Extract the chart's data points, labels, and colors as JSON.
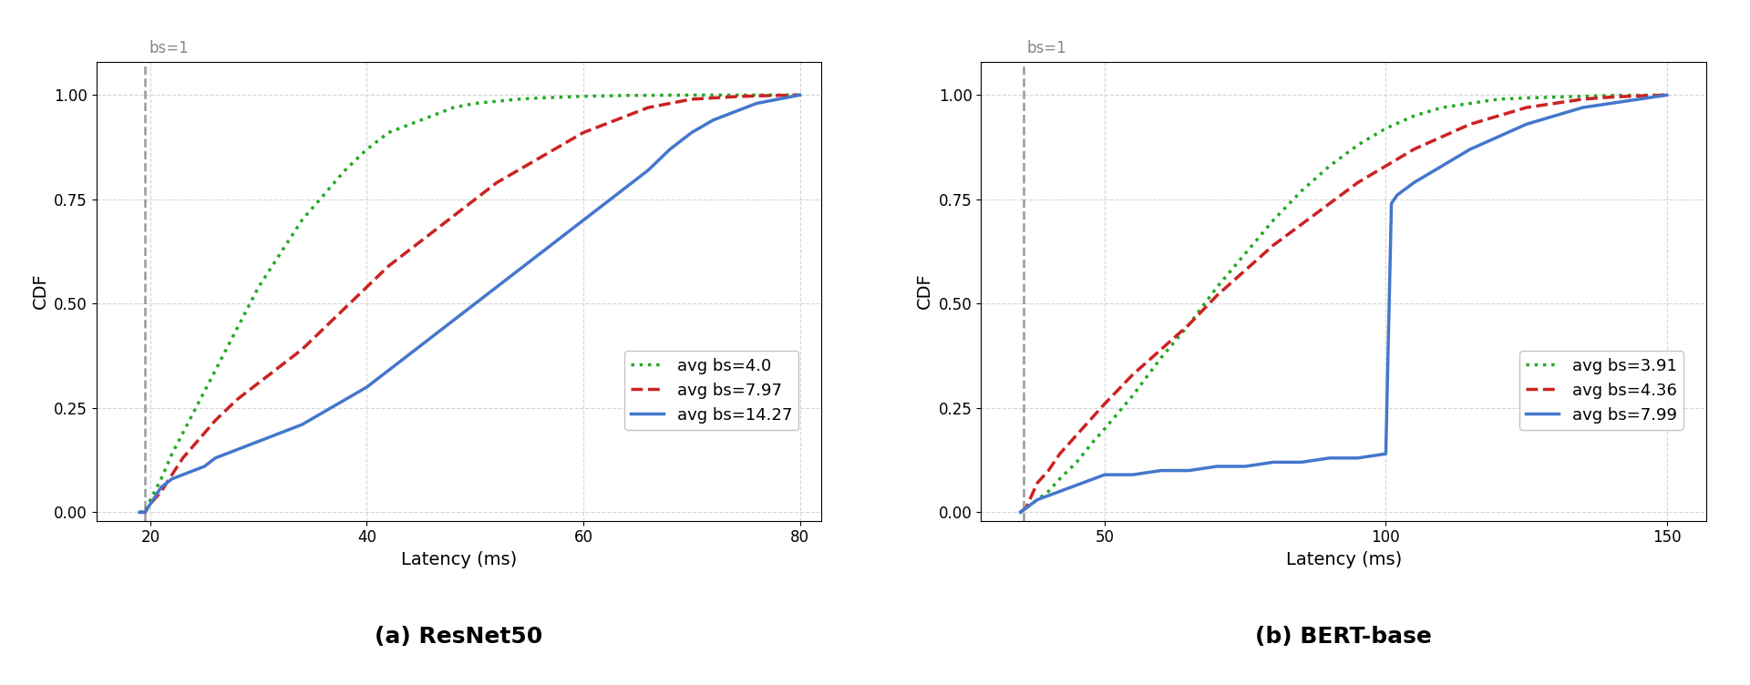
{
  "resnet": {
    "title": "(a) ResNet50",
    "xlabel": "Latency (ms)",
    "ylabel": "CDF",
    "xlim": [
      15.0,
      82.0
    ],
    "ylim": [
      -0.02,
      1.08
    ],
    "xticks": [
      20,
      40,
      60,
      80
    ],
    "yticks": [
      0.0,
      0.25,
      0.5,
      0.75,
      1.0
    ],
    "vline_x": 19.5,
    "vline_label": "bs=1",
    "series": [
      {
        "label": "avg bs=4.0",
        "color": "#22aa22",
        "linestyle": "dotted",
        "linewidth": 2.5,
        "x": [
          19.0,
          19.5,
          20.0,
          21.0,
          22.0,
          23.0,
          24.0,
          25.0,
          26.0,
          27.0,
          28.0,
          29.0,
          30.0,
          32.0,
          34.0,
          36.0,
          38.0,
          40.0,
          42.0,
          44.0,
          46.0,
          48.0,
          50.0,
          52.0,
          54.0,
          56.0,
          58.0,
          60.0,
          62.0,
          64.0,
          66.0,
          68.0,
          70.0,
          72.0,
          74.0,
          76.0,
          78.0,
          80.0
        ],
        "y": [
          0.0,
          0.0,
          0.03,
          0.08,
          0.14,
          0.19,
          0.24,
          0.29,
          0.34,
          0.39,
          0.44,
          0.49,
          0.54,
          0.62,
          0.7,
          0.76,
          0.82,
          0.87,
          0.91,
          0.93,
          0.95,
          0.97,
          0.98,
          0.985,
          0.99,
          0.993,
          0.995,
          0.997,
          0.998,
          0.999,
          0.9993,
          0.9996,
          0.9998,
          0.9999,
          0.9999,
          1.0,
          1.0,
          1.0
        ]
      },
      {
        "label": "avg bs=7.97",
        "color": "#cc2222",
        "linestyle": "dashed",
        "linewidth": 2.5,
        "x": [
          19.0,
          19.5,
          20.0,
          21.0,
          22.0,
          23.0,
          24.0,
          25.0,
          26.0,
          28.0,
          30.0,
          32.0,
          34.0,
          36.0,
          38.0,
          40.0,
          42.0,
          44.0,
          46.0,
          48.0,
          50.0,
          52.0,
          54.0,
          56.0,
          58.0,
          60.0,
          62.0,
          64.0,
          66.0,
          68.0,
          70.0,
          72.0,
          74.0,
          76.0,
          78.0,
          80.0
        ],
        "y": [
          0.0,
          0.0,
          0.02,
          0.05,
          0.09,
          0.13,
          0.16,
          0.19,
          0.22,
          0.27,
          0.31,
          0.35,
          0.39,
          0.44,
          0.49,
          0.54,
          0.59,
          0.63,
          0.67,
          0.71,
          0.75,
          0.79,
          0.82,
          0.85,
          0.88,
          0.91,
          0.93,
          0.95,
          0.97,
          0.98,
          0.99,
          0.993,
          0.996,
          0.998,
          0.999,
          1.0
        ]
      },
      {
        "label": "avg bs=14.27",
        "color": "#4477cc",
        "linestyle": "solid",
        "linewidth": 2.5,
        "x": [
          19.0,
          19.5,
          20.5,
          21.0,
          22.0,
          23.0,
          24.0,
          25.0,
          26.0,
          27.0,
          28.0,
          30.0,
          32.0,
          34.0,
          36.0,
          38.0,
          40.0,
          42.0,
          44.0,
          46.0,
          48.0,
          50.0,
          52.0,
          54.0,
          56.0,
          58.0,
          60.0,
          62.0,
          64.0,
          66.0,
          68.0,
          70.0,
          72.0,
          74.0,
          76.0,
          78.0,
          80.0
        ],
        "y": [
          0.0,
          0.0,
          0.04,
          0.06,
          0.08,
          0.09,
          0.1,
          0.11,
          0.13,
          0.14,
          0.15,
          0.17,
          0.19,
          0.21,
          0.24,
          0.27,
          0.3,
          0.34,
          0.38,
          0.42,
          0.46,
          0.5,
          0.54,
          0.58,
          0.62,
          0.66,
          0.7,
          0.74,
          0.78,
          0.82,
          0.87,
          0.91,
          0.94,
          0.96,
          0.98,
          0.99,
          1.0
        ]
      }
    ]
  },
  "bert": {
    "title": "(b) BERT-base",
    "xlabel": "Latency (ms)",
    "ylabel": "CDF",
    "xlim": [
      28.0,
      157.0
    ],
    "ylim": [
      -0.02,
      1.08
    ],
    "xticks": [
      50,
      100,
      150
    ],
    "yticks": [
      0.0,
      0.25,
      0.5,
      0.75,
      1.0
    ],
    "vline_x": 35.5,
    "vline_label": "bs=1",
    "series": [
      {
        "label": "avg bs=3.91",
        "color": "#22aa22",
        "linestyle": "dotted",
        "linewidth": 2.5,
        "x": [
          35.0,
          36.0,
          38.0,
          40.0,
          42.0,
          45.0,
          48.0,
          50.0,
          55.0,
          60.0,
          65.0,
          70.0,
          75.0,
          80.0,
          85.0,
          90.0,
          95.0,
          100.0,
          105.0,
          110.0,
          115.0,
          120.0,
          125.0,
          130.0,
          135.0,
          140.0,
          145.0,
          150.0
        ],
        "y": [
          0.0,
          0.01,
          0.03,
          0.05,
          0.08,
          0.12,
          0.17,
          0.2,
          0.28,
          0.37,
          0.45,
          0.54,
          0.62,
          0.7,
          0.77,
          0.83,
          0.88,
          0.92,
          0.95,
          0.97,
          0.98,
          0.99,
          0.993,
          0.995,
          0.997,
          0.999,
          0.9995,
          1.0
        ]
      },
      {
        "label": "avg bs=4.36",
        "color": "#cc2222",
        "linestyle": "dashed",
        "linewidth": 2.5,
        "x": [
          35.0,
          36.0,
          37.0,
          38.0,
          40.0,
          42.0,
          44.0,
          46.0,
          48.0,
          50.0,
          55.0,
          60.0,
          65.0,
          70.0,
          75.0,
          80.0,
          85.0,
          90.0,
          95.0,
          100.0,
          105.0,
          110.0,
          115.0,
          120.0,
          125.0,
          130.0,
          135.0,
          140.0,
          145.0,
          150.0
        ],
        "y": [
          0.0,
          0.01,
          0.04,
          0.07,
          0.1,
          0.14,
          0.17,
          0.2,
          0.23,
          0.26,
          0.33,
          0.39,
          0.45,
          0.52,
          0.58,
          0.64,
          0.69,
          0.74,
          0.79,
          0.83,
          0.87,
          0.9,
          0.93,
          0.95,
          0.97,
          0.98,
          0.99,
          0.995,
          0.998,
          1.0
        ]
      },
      {
        "label": "avg bs=7.99",
        "color": "#4477cc",
        "linestyle": "solid",
        "linewidth": 2.5,
        "x": [
          35.0,
          36.0,
          37.0,
          38.0,
          40.0,
          42.0,
          44.0,
          46.0,
          48.0,
          50.0,
          55.0,
          60.0,
          65.0,
          70.0,
          75.0,
          80.0,
          85.0,
          90.0,
          95.0,
          100.0,
          101.0,
          102.0,
          105.0,
          110.0,
          115.0,
          120.0,
          125.0,
          130.0,
          135.0,
          140.0,
          145.0,
          150.0
        ],
        "y": [
          0.0,
          0.01,
          0.02,
          0.03,
          0.04,
          0.05,
          0.06,
          0.07,
          0.08,
          0.09,
          0.09,
          0.1,
          0.1,
          0.11,
          0.11,
          0.12,
          0.12,
          0.13,
          0.13,
          0.14,
          0.74,
          0.76,
          0.79,
          0.83,
          0.87,
          0.9,
          0.93,
          0.95,
          0.97,
          0.98,
          0.99,
          1.0
        ]
      }
    ]
  },
  "figure": {
    "background_color": "#ffffff",
    "grid_color": "#cccccc",
    "grid_linestyle": "--",
    "grid_alpha": 0.8,
    "vline_color": "#999999",
    "vline_linestyle": "--",
    "vline_linewidth": 1.8,
    "title_fontsize": 18,
    "title_fontweight": "bold",
    "axis_label_fontsize": 14,
    "tick_fontsize": 12,
    "legend_fontsize": 13,
    "vline_label_fontsize": 12,
    "vline_label_color": "#888888"
  }
}
